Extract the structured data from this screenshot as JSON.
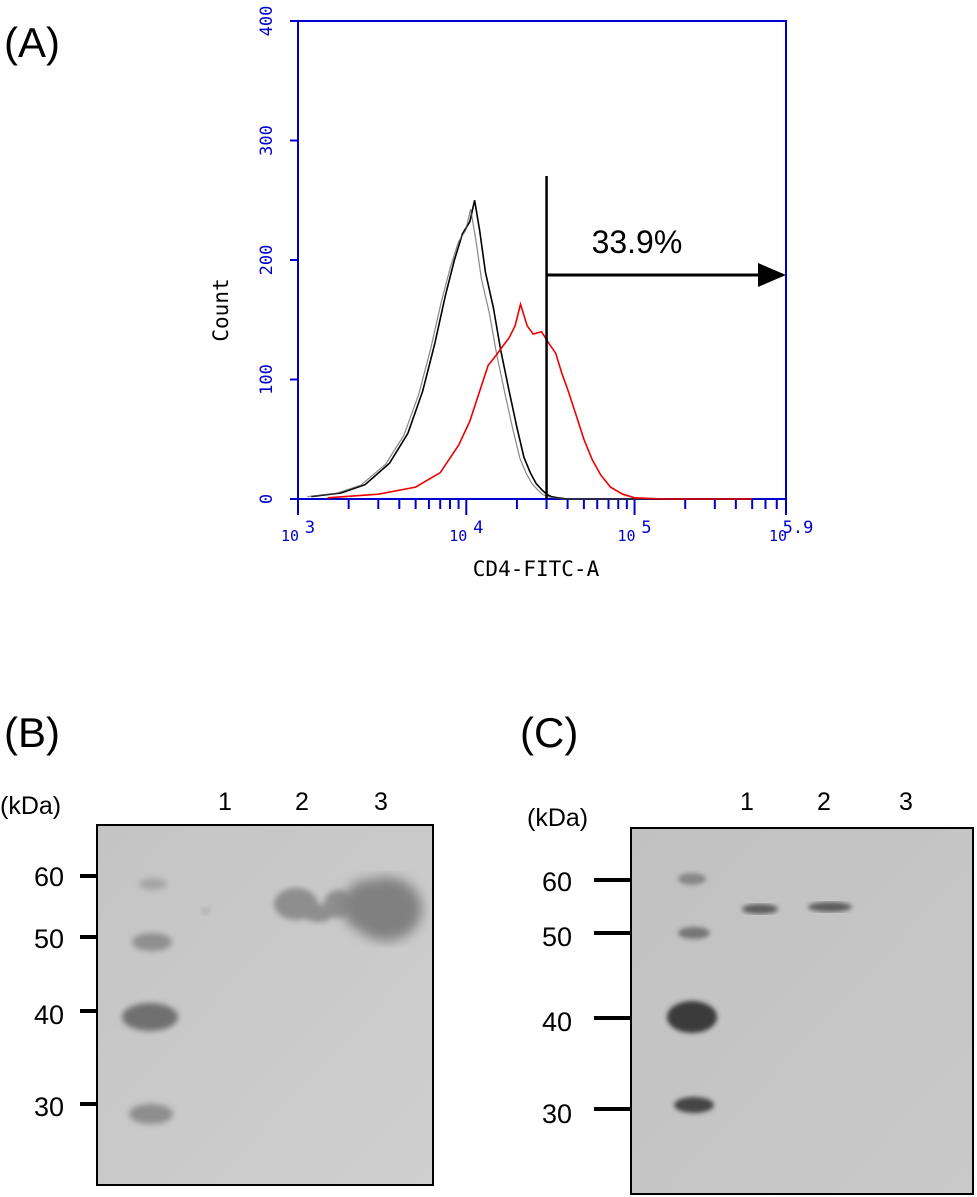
{
  "panels": {
    "a": {
      "label": "(A)"
    },
    "b": {
      "label": "(B)"
    },
    "c": {
      "label": "(C)"
    }
  },
  "chart_data": {
    "type": "line",
    "xlabel": "CD4-FITC-A",
    "ylabel": "Count",
    "xscale": "log",
    "xlim": [
      1000,
      794328
    ],
    "ylim": [
      0,
      400
    ],
    "x_tick_labels": [
      "10^3",
      "10^4",
      "10^5",
      "10^5.9"
    ],
    "y_ticks": [
      0,
      100,
      200,
      300,
      400
    ],
    "y_tick_labels": [
      "0",
      "100",
      "200",
      "300",
      "400"
    ],
    "colors": {
      "axes": "#0000cc",
      "control": "#000000",
      "sample": "#ee0000",
      "gate": "#000000"
    },
    "gate": {
      "threshold": 30000,
      "label": "33.9%"
    },
    "series": [
      {
        "color": "#000000",
        "x": [
          1200,
          1800,
          2500,
          3500,
          4500,
          5500,
          6500,
          7500,
          8500,
          9500,
          10500,
          11200,
          12000,
          13000,
          14500,
          16000,
          18000,
          20000,
          22000,
          24000,
          26000,
          28000,
          30000,
          32000,
          35000,
          40000,
          60000,
          100000,
          200000,
          500000
        ],
        "y": [
          2,
          5,
          12,
          30,
          55,
          90,
          130,
          170,
          200,
          222,
          232,
          250,
          225,
          190,
          160,
          125,
          90,
          60,
          35,
          22,
          13,
          8,
          4,
          2,
          1,
          0,
          0,
          0,
          0,
          0
        ]
      },
      {
        "color": "#ee0000",
        "x": [
          1500,
          3000,
          5000,
          7000,
          9000,
          10500,
          12000,
          13500,
          15000,
          16500,
          18000,
          19500,
          21000,
          23000,
          25000,
          28000,
          31000,
          34000,
          37000,
          40000,
          45000,
          50000,
          56000,
          63000,
          72000,
          85000,
          100000,
          150000,
          300000,
          500000
        ],
        "y": [
          1,
          4,
          10,
          22,
          45,
          65,
          90,
          112,
          120,
          128,
          135,
          145,
          163,
          145,
          138,
          140,
          130,
          122,
          105,
          92,
          70,
          50,
          33,
          20,
          10,
          4,
          1,
          0,
          0,
          0
        ]
      }
    ]
  },
  "blot_b": {
    "kda_label": "(kDa)",
    "lanes": [
      "1",
      "2",
      "3"
    ],
    "markers": [
      "60",
      "50",
      "40",
      "30"
    ]
  },
  "blot_c": {
    "kda_label": "(kDa)",
    "lanes": [
      "1",
      "2",
      "3"
    ],
    "markers": [
      "60",
      "50",
      "40",
      "30"
    ]
  }
}
